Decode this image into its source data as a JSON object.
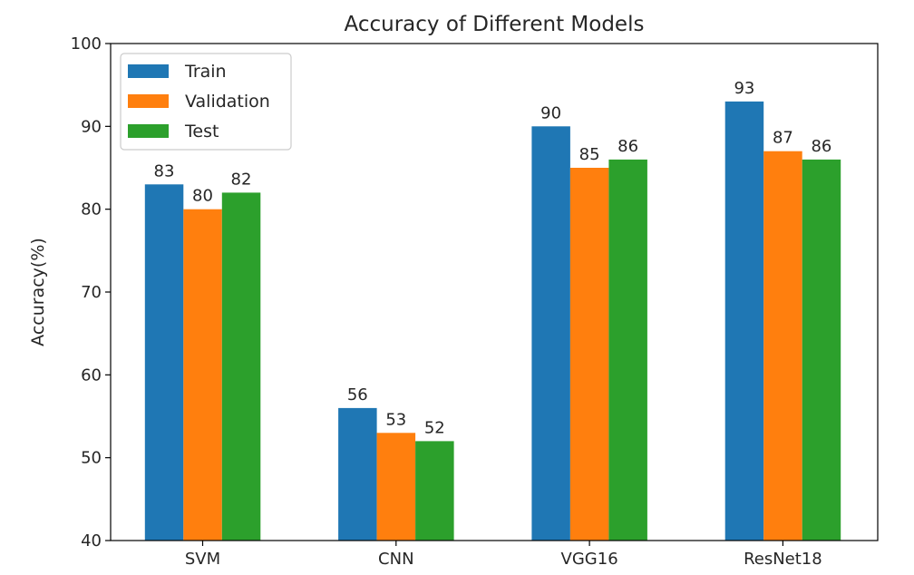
{
  "chart_data": {
    "type": "bar",
    "title": "Accuracy of Different Models",
    "xlabel": "",
    "ylabel": "Accuracy(%)",
    "categories": [
      "SVM",
      "CNN",
      "VGG16",
      "ResNet18"
    ],
    "series": [
      {
        "name": "Train",
        "values": [
          83,
          56,
          90,
          93
        ],
        "color": "#1f77b4"
      },
      {
        "name": "Validation",
        "values": [
          80,
          53,
          85,
          87
        ],
        "color": "#ff7f0e"
      },
      {
        "name": "Test",
        "values": [
          82,
          52,
          86,
          86
        ],
        "color": "#2ca02c"
      }
    ],
    "ylim": [
      40,
      100
    ],
    "yticks": [
      "40",
      "50",
      "60",
      "70",
      "80",
      "90",
      "100"
    ],
    "grid": false,
    "legend_position": "top-left",
    "data_labels": true
  }
}
